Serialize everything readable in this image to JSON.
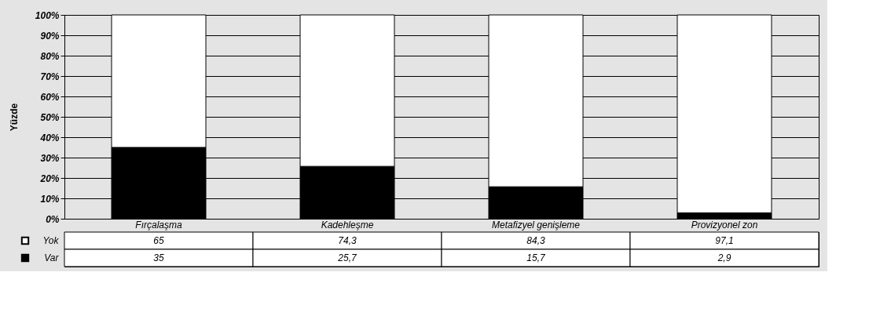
{
  "chart_data": {
    "type": "bar",
    "stacked": true,
    "ylabel": "Yüzde",
    "categories": [
      "Fırçalaşma",
      "Kadehleşme",
      "Metafizyel genişleme",
      "Provizyonel zon"
    ],
    "series": [
      {
        "name": "Var",
        "color": "#000000",
        "values": [
          35,
          25.7,
          15.7,
          2.9
        ],
        "value_labels": [
          "35",
          "25,7",
          "15,7",
          "2,9"
        ]
      },
      {
        "name": "Yok",
        "color": "#ffffff",
        "values": [
          65,
          74.3,
          84.3,
          97.1
        ],
        "value_labels": [
          "65",
          "74,3",
          "84,3",
          "97,1"
        ]
      }
    ],
    "ylim": [
      0,
      100
    ],
    "yticks": [
      {
        "value": 0,
        "label": "0%"
      },
      {
        "value": 10,
        "label": "10%"
      },
      {
        "value": 20,
        "label": "20%"
      },
      {
        "value": 30,
        "label": "30%"
      },
      {
        "value": 40,
        "label": "40%"
      },
      {
        "value": 50,
        "label": "50%"
      },
      {
        "value": 60,
        "label": "60%"
      },
      {
        "value": 70,
        "label": "70%"
      },
      {
        "value": 80,
        "label": "80%"
      },
      {
        "value": 90,
        "label": "90%"
      },
      {
        "value": 100,
        "label": "100%"
      }
    ],
    "grid": "y",
    "legend": "bottom left"
  }
}
